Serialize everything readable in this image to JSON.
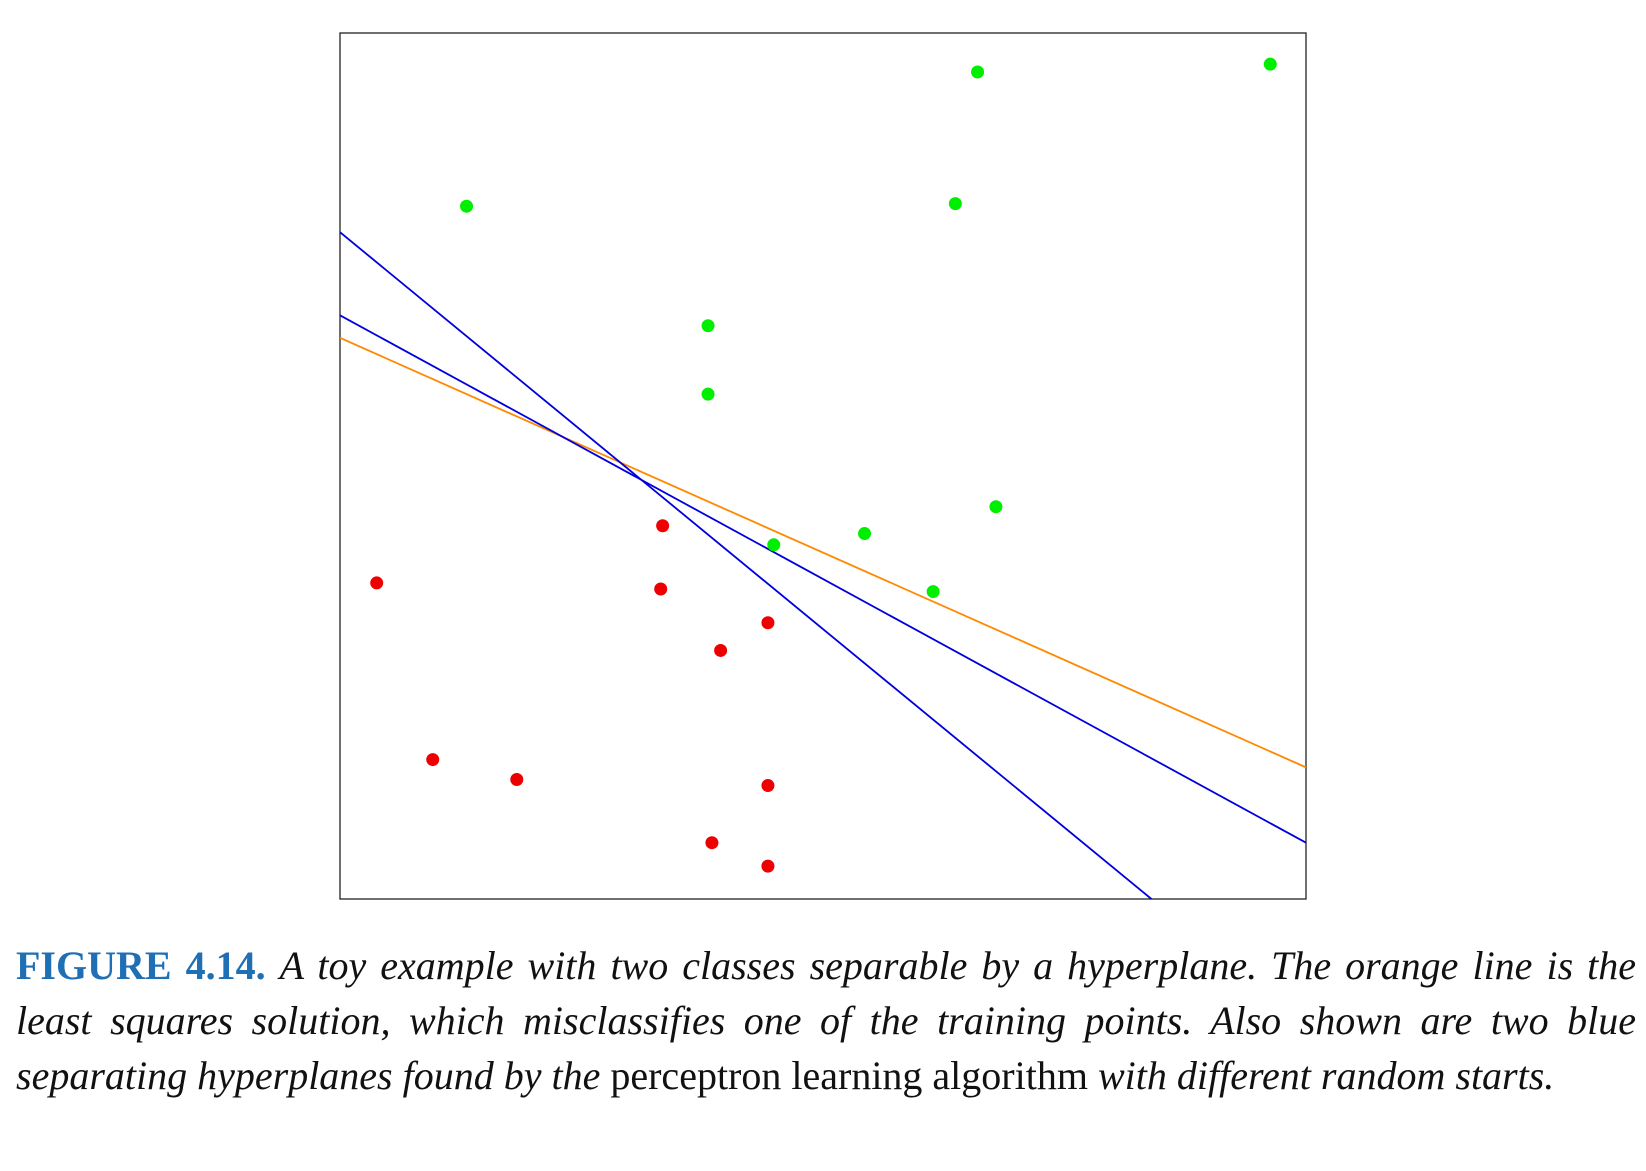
{
  "chart_data": {
    "type": "scatter",
    "title": "",
    "xlabel": "",
    "ylabel": "",
    "xlim": [
      0,
      100
    ],
    "ylim": [
      0,
      100
    ],
    "grid": false,
    "legend": "none",
    "series": [
      {
        "name": "green class",
        "color": "#00ee00",
        "points": [
          [
            66.0,
            95.5
          ],
          [
            96.3,
            96.4
          ],
          [
            13.1,
            80.0
          ],
          [
            63.7,
            80.3
          ],
          [
            38.1,
            66.2
          ],
          [
            38.1,
            58.3
          ],
          [
            67.9,
            45.3
          ],
          [
            54.3,
            42.2
          ],
          [
            44.9,
            40.9
          ],
          [
            61.4,
            35.5
          ]
        ]
      },
      {
        "name": "red class",
        "color": "#ee0000",
        "points": [
          [
            33.4,
            43.1
          ],
          [
            3.8,
            36.5
          ],
          [
            33.2,
            35.8
          ],
          [
            44.3,
            31.9
          ],
          [
            39.4,
            28.7
          ],
          [
            9.6,
            16.1
          ],
          [
            18.3,
            13.8
          ],
          [
            44.3,
            13.1
          ],
          [
            38.5,
            6.5
          ],
          [
            44.3,
            3.8
          ]
        ]
      }
    ],
    "lines": [
      {
        "name": "least squares solution",
        "color": "#ff8800",
        "from": [
          0,
          64.8
        ],
        "to": [
          100,
          15.2
        ]
      },
      {
        "name": "perceptron hyperplane 1",
        "color": "#0000dd",
        "from": [
          0,
          77.0
        ],
        "to": [
          84.0,
          0
        ]
      },
      {
        "name": "perceptron hyperplane 2",
        "color": "#0000dd",
        "from": [
          0,
          67.4
        ],
        "to": [
          100,
          6.5
        ]
      }
    ]
  },
  "caption": {
    "label": "FIGURE 4.14.",
    "part1": "A toy example with two classes separable by a hyperplane. The orange line is the least squares solution, which misclassifies one of the training points. Also shown are two blue separating hyperplanes found by the",
    "term": "perceptron learning algorithm",
    "part2": "with different random starts."
  }
}
